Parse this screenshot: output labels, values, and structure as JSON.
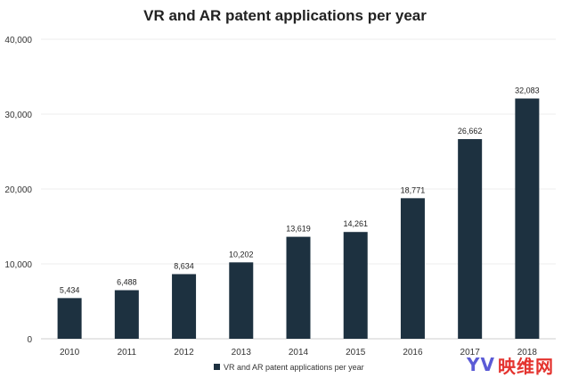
{
  "chart_data": {
    "type": "bar",
    "title": "VR and AR patent applications per year",
    "categories": [
      "2010",
      "2011",
      "2012",
      "2013",
      "2014",
      "2015",
      "2016",
      "2017",
      "2018"
    ],
    "series": [
      {
        "name": "VR and AR patent applications per year",
        "values": [
          5434,
          6488,
          8634,
          10202,
          13619,
          14261,
          18771,
          26662,
          32083
        ],
        "labels": [
          "5,434",
          "6,488",
          "8,634",
          "10,202",
          "13,619",
          "14,261",
          "18,771",
          "26,662",
          "32,083"
        ]
      }
    ],
    "ylim": [
      0,
      40000
    ],
    "yticks": [
      0,
      10000,
      20000,
      30000,
      40000
    ],
    "ytick_labels": [
      "0",
      "10,000",
      "20,000",
      "30,000",
      "40,000"
    ],
    "grid": true,
    "legend_position": "bottom-center",
    "bar_color": "#1d3140"
  },
  "watermark": {
    "logo": "YV",
    "text": "映维网",
    "logo_color": "#5b5bd6",
    "text_color": "#e4342f"
  }
}
